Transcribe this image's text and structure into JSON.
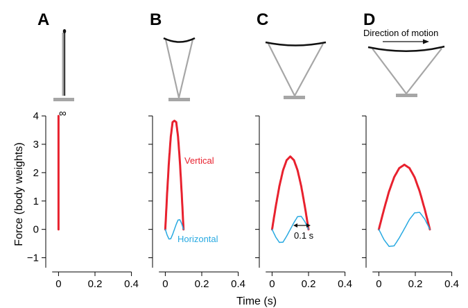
{
  "figure": {
    "ylabel": "Force (body weights)",
    "xlabel": "Time (s)",
    "infinity_label": "∞",
    "labels": {
      "vertical": "Vertical",
      "horizontal": "Horizontal",
      "duration": "0.1 s",
      "direction": "Direction of motion"
    },
    "colors": {
      "vertical": "#e8212e",
      "horizontal": "#27a9e1",
      "strut": "#a6a6a6",
      "rim": "#111111"
    }
  },
  "chart_data": [
    {
      "panel": "A",
      "type": "line",
      "xlabel": "Time (s)",
      "ylabel": "Force (body weights)",
      "xlim": [
        -0.07,
        0.47
      ],
      "ylim": [
        -1.5,
        4.1
      ],
      "xticks": [
        "0",
        "0.2",
        "0.4"
      ],
      "yticks": [
        "−1",
        "0",
        "1",
        "2",
        "3",
        "4"
      ],
      "vertical_peak_annotation": "∞",
      "series": [
        {
          "name": "Vertical",
          "x": [
            0,
            0
          ],
          "y": [
            0,
            4
          ]
        }
      ]
    },
    {
      "panel": "B",
      "type": "line",
      "xlabel": "Time (s)",
      "xlim": [
        -0.07,
        0.47
      ],
      "ylim": [
        -1.5,
        4.1
      ],
      "xticks": [
        "0",
        "0.2",
        "0.4"
      ],
      "contact_duration_s": 0.1,
      "series": [
        {
          "name": "Vertical",
          "x": [
            0,
            0.01,
            0.02,
            0.03,
            0.04,
            0.05,
            0.06,
            0.07,
            0.08,
            0.09,
            0.1
          ],
          "y": [
            0,
            1.27,
            2.39,
            3.26,
            3.78,
            3.83,
            3.78,
            3.26,
            2.39,
            1.27,
            0
          ]
        },
        {
          "name": "Horizontal",
          "x": [
            0,
            0.01,
            0.02,
            0.03,
            0.04,
            0.05,
            0.06,
            0.07,
            0.08,
            0.09,
            0.1
          ],
          "y": [
            0,
            -0.2,
            -0.34,
            -0.33,
            -0.18,
            0,
            0.18,
            0.33,
            0.34,
            0.2,
            0
          ]
        }
      ]
    },
    {
      "panel": "C",
      "type": "line",
      "xlabel": "Time (s)",
      "xlim": [
        -0.07,
        0.47
      ],
      "ylim": [
        -1.5,
        4.1
      ],
      "xticks": [
        "0",
        "0.2",
        "0.4"
      ],
      "contact_duration_s": 0.2,
      "series": [
        {
          "name": "Vertical",
          "x": [
            0,
            0.02,
            0.04,
            0.06,
            0.08,
            0.1,
            0.12,
            0.14,
            0.16,
            0.18,
            0.2
          ],
          "y": [
            0,
            0.8,
            1.52,
            2.08,
            2.44,
            2.57,
            2.44,
            2.08,
            1.52,
            0.8,
            0
          ]
        },
        {
          "name": "Horizontal",
          "x": [
            0,
            0.02,
            0.04,
            0.06,
            0.08,
            0.1,
            0.12,
            0.14,
            0.16,
            0.18,
            0.2
          ],
          "y": [
            0,
            -0.27,
            -0.46,
            -0.45,
            -0.24,
            0,
            0.24,
            0.45,
            0.46,
            0.27,
            0
          ]
        }
      ]
    },
    {
      "panel": "D",
      "type": "line",
      "xlabel": "Time (s)",
      "xlim": [
        -0.07,
        0.47
      ],
      "ylim": [
        -1.5,
        4.1
      ],
      "xticks": [
        "0",
        "0.2",
        "0.4"
      ],
      "contact_duration_s": 0.28,
      "series": [
        {
          "name": "Vertical",
          "x": [
            0,
            0.028,
            0.056,
            0.084,
            0.112,
            0.14,
            0.168,
            0.196,
            0.224,
            0.252,
            0.28
          ],
          "y": [
            0,
            0.7,
            1.34,
            1.84,
            2.16,
            2.28,
            2.16,
            1.84,
            1.34,
            0.7,
            0
          ]
        },
        {
          "name": "Horizontal",
          "x": [
            0,
            0.028,
            0.056,
            0.084,
            0.112,
            0.14,
            0.168,
            0.196,
            0.224,
            0.252,
            0.28
          ],
          "y": [
            0,
            -0.36,
            -0.6,
            -0.58,
            -0.3,
            0.02,
            0.35,
            0.58,
            0.6,
            0.36,
            0
          ]
        }
      ]
    }
  ]
}
